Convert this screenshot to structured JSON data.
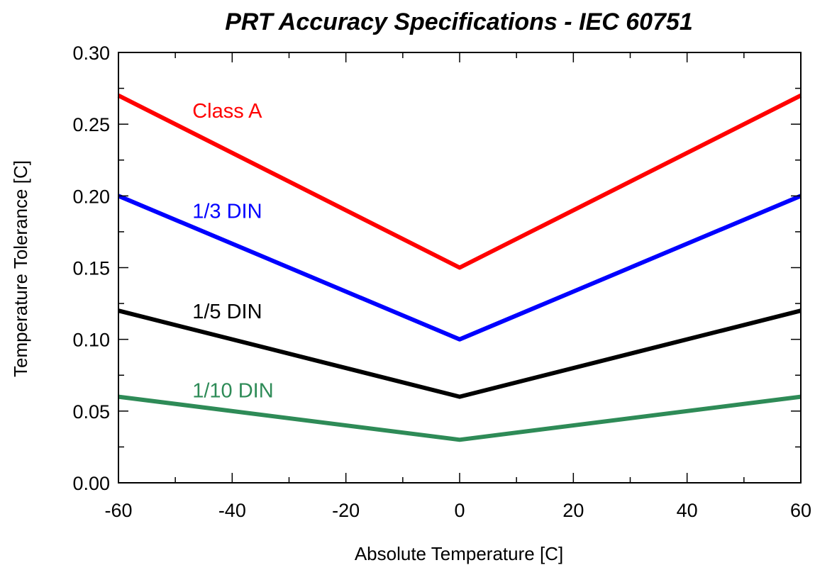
{
  "chart_data": {
    "type": "line",
    "title": "PRT Accuracy Specifications - IEC 60751",
    "xlabel": "Absolute Temperature [C]",
    "ylabel": "Temperature Tolerance [C]",
    "xlim": [
      -60,
      60
    ],
    "ylim": [
      0,
      0.3
    ],
    "x_ticks": [
      -60,
      -40,
      -20,
      0,
      20,
      40,
      60
    ],
    "y_ticks": [
      0.0,
      0.05,
      0.1,
      0.15,
      0.2,
      0.25,
      0.3
    ],
    "x_tick_labels": [
      "-60",
      "-40",
      "-20",
      "0",
      "20",
      "40",
      "60"
    ],
    "y_tick_labels": [
      "0.00",
      "0.05",
      "0.10",
      "0.15",
      "0.20",
      "0.25",
      "0.30"
    ],
    "grid": false,
    "legend": "inline labels",
    "series": [
      {
        "name": "Class A",
        "color": "#ff0000",
        "x": [
          -60,
          0,
          60
        ],
        "y": [
          0.27,
          0.15,
          0.27
        ],
        "label_at": [
          -47,
          0.26
        ]
      },
      {
        "name": "1/3 DIN",
        "color": "#0000ff",
        "x": [
          -60,
          0,
          60
        ],
        "y": [
          0.2,
          0.1,
          0.2
        ],
        "label_at": [
          -47,
          0.19
        ]
      },
      {
        "name": "1/5 DIN",
        "color": "#000000",
        "x": [
          -60,
          0,
          60
        ],
        "y": [
          0.12,
          0.06,
          0.12
        ],
        "label_at": [
          -47,
          0.12
        ]
      },
      {
        "name": "1/10 DIN",
        "color": "#2e8b57",
        "x": [
          -60,
          0,
          60
        ],
        "y": [
          0.06,
          0.03,
          0.06
        ],
        "label_at": [
          -47,
          0.065
        ]
      }
    ]
  }
}
